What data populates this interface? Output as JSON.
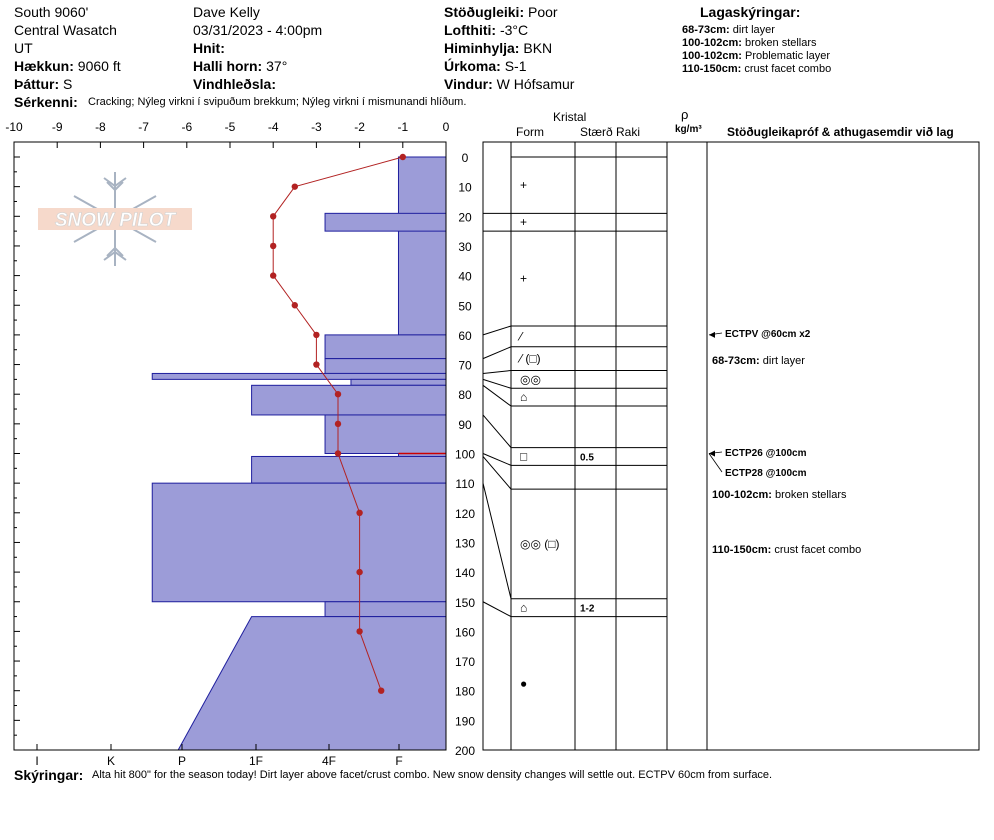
{
  "header": {
    "col1": {
      "location": "South 9060'",
      "range": "Central Wasatch",
      "state": "UT",
      "elevation_label": "Hækkun:",
      "elevation": "9060 ft",
      "aspect_label": "Þáttur:",
      "aspect": "S"
    },
    "col2": {
      "observer": "Dave Kelly",
      "datetime": "03/31/2023 - 4:00pm",
      "coords_label": "Hnit:",
      "slope_label": "Halli horn:",
      "slope": "37°",
      "wind_loading_label": "Vindhleðsla:"
    },
    "col3": {
      "stability_label": "Stöðugleiki:",
      "stability": "Poor",
      "air_temp_label": "Lofthiti:",
      "air_temp": "-3°C",
      "sky_label": "Himinhylja:",
      "sky": "BKN",
      "precip_label": "Úrkoma:",
      "precip": "S-1",
      "wind_label": "Vindur:",
      "wind": "W Hófsamur"
    },
    "legend": {
      "title": "Lagaskýringar:",
      "items": [
        {
          "depth": "68-73cm:",
          "text": "dirt layer"
        },
        {
          "depth": "100-102cm:",
          "text": "broken stellars"
        },
        {
          "depth": "100-102cm:",
          "text": "Problematic layer"
        },
        {
          "depth": "110-150cm:",
          "text": "crust facet combo"
        }
      ]
    },
    "features_label": "Sérkenni:",
    "features": "Cracking;  Nýleg virkni í svipuðum brekkum;  Nýleg virkni í mismunandi hlíðum."
  },
  "logo": {
    "text": "SNOW PILOT"
  },
  "columns": {
    "crystal": "Kristal",
    "form": "Form",
    "size": "Stærð",
    "moisture": "Raki",
    "rho": "ρ",
    "density_unit": "kg/m³",
    "tests": "Stöðugleikapróf & athugasemdir við lag"
  },
  "comments": {
    "label": "Skýringar:",
    "text": "Alta hit 800\" for the season today! Dirt layer above facet/crust combo.  New snow density changes will settle out. ECTPV 60cm from surface."
  },
  "chart_data": {
    "type": "snow_profile",
    "temperature_axis": {
      "label_values": [
        "-10",
        "-9",
        "-8",
        "-7",
        "-6",
        "-5",
        "-4",
        "-3",
        "-2",
        "-1",
        "0"
      ],
      "range": [
        -10,
        0
      ],
      "unit": "°C"
    },
    "depth_axis": {
      "ticks": [
        "0",
        "10",
        "20",
        "30",
        "40",
        "50",
        "60",
        "70",
        "80",
        "90",
        "100",
        "110",
        "120",
        "130",
        "140",
        "150",
        "160",
        "170",
        "180",
        "190",
        "200"
      ],
      "range": [
        0,
        200
      ],
      "unit": "cm"
    },
    "hardness_axis": {
      "labels": [
        "I",
        "K",
        "P",
        "1F",
        "4F",
        "F"
      ]
    },
    "temperature_profile": [
      {
        "depth": 0,
        "temp": -1.0
      },
      {
        "depth": 10,
        "temp": -3.5
      },
      {
        "depth": 20,
        "temp": -4.0
      },
      {
        "depth": 30,
        "temp": -4.0
      },
      {
        "depth": 40,
        "temp": -4.0
      },
      {
        "depth": 50,
        "temp": -3.5
      },
      {
        "depth": 60,
        "temp": -3.0
      },
      {
        "depth": 70,
        "temp": -3.0
      },
      {
        "depth": 80,
        "temp": -2.5
      },
      {
        "depth": 90,
        "temp": -2.5
      },
      {
        "depth": 100,
        "temp": -2.5
      },
      {
        "depth": 120,
        "temp": -2.0
      },
      {
        "depth": 140,
        "temp": -2.0
      },
      {
        "depth": 160,
        "temp": -2.0
      },
      {
        "depth": 180,
        "temp": -1.5
      }
    ],
    "hardness_layers": [
      {
        "top": 0,
        "bottom": 60,
        "hardness": 1.1
      },
      {
        "top": 19,
        "bottom": 25,
        "hardness": 2.8
      },
      {
        "top": 60,
        "bottom": 68,
        "hardness": 2.8
      },
      {
        "top": 68,
        "bottom": 73,
        "hardness": 2.8
      },
      {
        "top": 73,
        "bottom": 75,
        "hardness": 6.8
      },
      {
        "top": 75,
        "bottom": 77,
        "hardness": 2.2
      },
      {
        "top": 77,
        "bottom": 87,
        "hardness": 4.5
      },
      {
        "top": 87,
        "bottom": 100,
        "hardness": 2.8
      },
      {
        "top": 100,
        "bottom": 101,
        "hardness": 1.1
      },
      {
        "top": 101,
        "bottom": 110,
        "hardness": 4.5
      },
      {
        "top": 110,
        "bottom": 150,
        "hardness": 6.8
      },
      {
        "top": 150,
        "bottom": 155,
        "hardness": 2.8
      },
      {
        "top": 155,
        "bottom": 200,
        "hardness_top": 4.5,
        "hardness_bottom": 6.2
      }
    ],
    "layers": [
      {
        "top": 0,
        "bottom": 19,
        "form": "+",
        "size": "",
        "pointer_depth": 0
      },
      {
        "top": 19,
        "bottom": 25,
        "form": "+",
        "size": "",
        "pointer_depth": 19
      },
      {
        "top": 25,
        "bottom": 57,
        "form": "+",
        "size": "",
        "pointer_depth": 25
      },
      {
        "top": 57,
        "bottom": 64,
        "form": "⁄",
        "size": "",
        "pointer_depth": 60
      },
      {
        "top": 64,
        "bottom": 72,
        "form": "⁄ (□)",
        "size": "",
        "pointer_depth": 68
      },
      {
        "top": 72,
        "bottom": 78,
        "form": "◎◎",
        "size": "",
        "pointer_depth": 73
      },
      {
        "top": 78,
        "bottom": 84,
        "form": "⌂",
        "size": "",
        "pointer_depth": 75
      },
      {
        "top": 84,
        "bottom": 98,
        "form": "",
        "size": "",
        "pointer_depth": 77
      },
      {
        "top": 98,
        "bottom": 104,
        "form": "□",
        "size": "0.5",
        "pointer_depth": 87
      },
      {
        "top": 104,
        "bottom": 112,
        "form": "",
        "size": "",
        "pointer_depth": 100
      },
      {
        "top": 112,
        "bottom": 149,
        "form": "◎◎ (□)",
        "size": "",
        "pointer_depth": 101
      },
      {
        "top": 149,
        "bottom": 155,
        "form": "⌂",
        "size": "1-2",
        "pointer_depth": 110
      },
      {
        "top": 155,
        "bottom": 200,
        "form": "●",
        "size": "",
        "pointer_depth": 150
      }
    ],
    "tests": [
      {
        "text": "ECTPV @60cm  x2",
        "depth": 60
      },
      {
        "text": "ECTP26 @100cm",
        "depth": 100
      },
      {
        "text": "ECTP28 @100cm",
        "depth": 100
      }
    ],
    "layer_comments": [
      {
        "depth_label": "68-73cm:",
        "text": "dirt layer"
      },
      {
        "depth_label": "100-102cm:",
        "text": "broken stellars"
      },
      {
        "depth_label": "110-150cm:",
        "text": "crust facet combo"
      }
    ]
  }
}
